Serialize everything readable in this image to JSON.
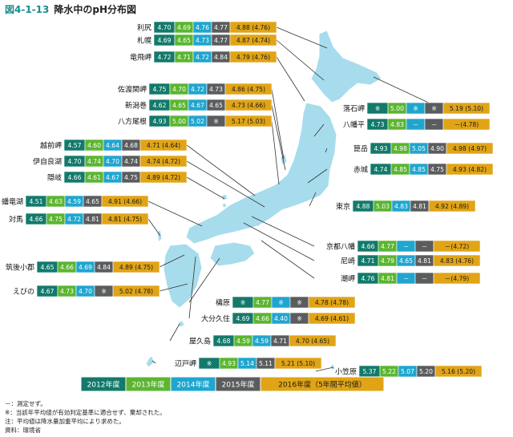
{
  "figure": {
    "number": "図4-1-13",
    "title": "降水中のpH分布図"
  },
  "colors": {
    "y2012": "#137a6b",
    "y2013": "#5cb531",
    "y2014": "#1fa6cf",
    "y2015": "#5a5c5e",
    "y2016": "#e0a416",
    "map": "#a7dced",
    "leader": "#333333"
  },
  "chart_data": {
    "type": "table",
    "title": "降水中のpH分布図",
    "years": [
      "2012年度",
      "2013年度",
      "2014年度",
      "2015年度",
      "2016年度（5年間平均値）"
    ],
    "stations": [
      {
        "name": "利尻",
        "values": [
          "4.70",
          "4.69",
          "4.76",
          "4.77",
          "4.88 (4.76)"
        ]
      },
      {
        "name": "札幌",
        "values": [
          "4.69",
          "4.65",
          "4.73",
          "4.77",
          "4.87 (4.74)"
        ]
      },
      {
        "name": "竜飛岬",
        "values": [
          "4.72",
          "4.71",
          "4.72",
          "4.84",
          "4.79 (4.76)"
        ]
      },
      {
        "name": "佐渡関岬",
        "values": [
          "4.75",
          "4.70",
          "4.72",
          "4.73",
          "4.86 (4.75)"
        ]
      },
      {
        "name": "新潟巻",
        "values": [
          "4.62",
          "4.65",
          "4.67",
          "4.65",
          "4.73 (4.66)"
        ]
      },
      {
        "name": "八方尾根",
        "values": [
          "4.93",
          "5.00",
          "5.02",
          "※",
          "5.17 (5.03)"
        ]
      },
      {
        "name": "越前岬",
        "values": [
          "4.57",
          "4.60",
          "4.64",
          "4.68",
          "4.71 (4.64)"
        ]
      },
      {
        "name": "伊自良湖",
        "values": [
          "4.70",
          "4.74",
          "4.70",
          "4.74",
          "4.74 (4.72)"
        ]
      },
      {
        "name": "隠岐",
        "values": [
          "4.66",
          "4.61",
          "4.67",
          "4.75",
          "4.89 (4.72)"
        ]
      },
      {
        "name": "蟠竜湖",
        "values": [
          "4.51",
          "4.63",
          "4.59",
          "4.65",
          "4.91 (4.66)"
        ]
      },
      {
        "name": "対馬",
        "values": [
          "4.66",
          "4.75",
          "4.72",
          "4.81",
          "4.81 (4.75)"
        ]
      },
      {
        "name": "筑後小郡",
        "values": [
          "4.65",
          "4.66",
          "4.69",
          "4.84",
          "4.89 (4.75)"
        ]
      },
      {
        "name": "えびの",
        "values": [
          "4.67",
          "4.73",
          "4.70",
          "※",
          "5.02 (4.78)"
        ]
      },
      {
        "name": "落石岬",
        "values": [
          "※",
          "5.00",
          "※",
          "※",
          "5.19 (5.10)"
        ]
      },
      {
        "name": "八幡平",
        "values": [
          "4.73",
          "4.83",
          "－",
          "－",
          "－(4.78)"
        ]
      },
      {
        "name": "箟岳",
        "values": [
          "4.93",
          "4.98",
          "5.05",
          "4.90",
          "4.98 (4.97)"
        ]
      },
      {
        "name": "赤城",
        "values": [
          "4.74",
          "4.85",
          "4.85",
          "4.75",
          "4.93 (4.82)"
        ]
      },
      {
        "name": "東京",
        "values": [
          "4.88",
          "5.03",
          "4.83",
          "4.81",
          "4.92 (4.89)"
        ]
      },
      {
        "name": "京都八幡",
        "values": [
          "4.66",
          "4.77",
          "－",
          "－",
          "－(4.72)"
        ]
      },
      {
        "name": "尼崎",
        "values": [
          "4.71",
          "4.79",
          "4.65",
          "4.81",
          "4.83 (4.76)"
        ]
      },
      {
        "name": "潮岬",
        "values": [
          "4.76",
          "4.81",
          "－",
          "－",
          "－(4.79)"
        ]
      },
      {
        "name": "檮原",
        "values": [
          "※",
          "4.77",
          "※",
          "※",
          "4.78 (4.78)"
        ]
      },
      {
        "name": "大分久住",
        "values": [
          "4.69",
          "4.66",
          "4.40",
          "※",
          "4.69 (4.61)"
        ]
      },
      {
        "name": "屋久島",
        "values": [
          "4.68",
          "4.59",
          "4.59",
          "4.71",
          "4.70 (4.65)"
        ]
      },
      {
        "name": "辺戸岬",
        "values": [
          "※",
          "4.93",
          "5.14",
          "5.11",
          "5.21 (5.10)"
        ]
      },
      {
        "name": "小笠原",
        "values": [
          "5.37",
          "5.22",
          "5.07",
          "5.20",
          "5.16 (5.20)"
        ]
      }
    ]
  },
  "notes": [
    "－：測定せず。",
    "※：当該年平均値が有効判定基準に適合せず、棄却された。",
    "注：平均値は降水量加重平均により求めた。",
    "資料：環境省"
  ]
}
